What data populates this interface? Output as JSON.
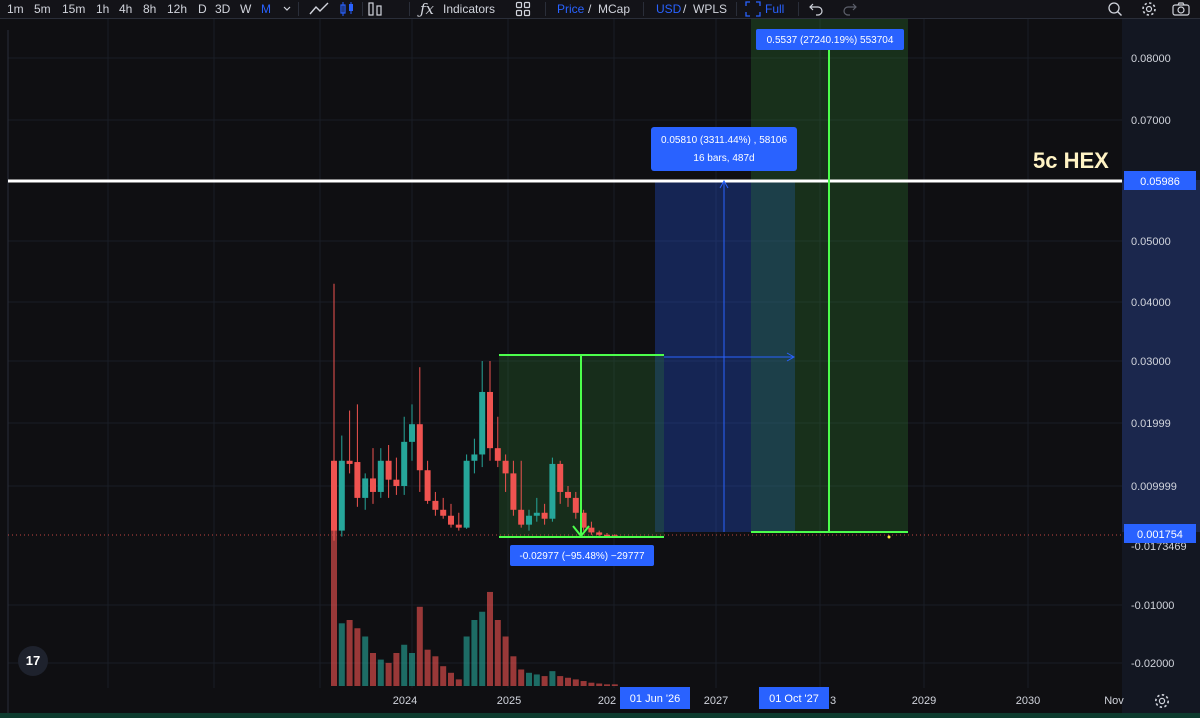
{
  "toolbar": {
    "intervals": [
      "1m",
      "5m",
      "15m",
      "1h",
      "4h",
      "8h",
      "12h",
      "D",
      "3D",
      "W",
      "M"
    ],
    "active_interval": "M",
    "indicators_label": "Indicators",
    "price_label": "Price",
    "mcap_label": "MCap",
    "currency_label": "USD",
    "pair_label": "WPLS",
    "full_label": "Full"
  },
  "colors": {
    "up": "#26a69a",
    "down": "#ef5350",
    "accent": "#2962ff",
    "measure_green": "#4cff4c",
    "hline": "#ffffff",
    "annotation": "#fff3c4"
  },
  "chart_data": {
    "type": "candlestick",
    "price_ticks": [
      "0.08000",
      "0.07000",
      "0.05000",
      "0.04000",
      "0.03000",
      "0.01999",
      "0.009999",
      "-0.01000",
      "-0.02000"
    ],
    "partial_tick": "-0.0173469",
    "time_ticks": [
      "2024",
      "2025",
      "2027",
      "2029",
      "2030",
      "Nov"
    ],
    "time_tick_partials": [
      "202",
      "3"
    ],
    "last_price_label": "0.001754",
    "hline_label": "0.05986",
    "annotation_text": "5c HEX",
    "measure_down": "-0.02977 (−95.48%) −29777",
    "measure_up_line1": "0.05810 (3311.44%) , 58106",
    "measure_up_line2": "16 bars, 487d",
    "measure_big": "0.5537 (27240.19%) 553704",
    "range_start_label": "01 Jun '26",
    "range_end_label": "01 Oct '27",
    "candles": [
      {
        "o": 0.014,
        "h": 0.043,
        "l": 0.0008,
        "c": 0.0025
      },
      {
        "o": 0.0025,
        "h": 0.018,
        "l": 0.0015,
        "c": 0.014
      },
      {
        "o": 0.014,
        "h": 0.022,
        "l": 0.012,
        "c": 0.0135
      },
      {
        "o": 0.0138,
        "h": 0.023,
        "l": 0.0065,
        "c": 0.008
      },
      {
        "o": 0.008,
        "h": 0.012,
        "l": 0.006,
        "c": 0.0112
      },
      {
        "o": 0.0112,
        "h": 0.016,
        "l": 0.007,
        "c": 0.009
      },
      {
        "o": 0.009,
        "h": 0.016,
        "l": 0.008,
        "c": 0.014
      },
      {
        "o": 0.014,
        "h": 0.0165,
        "l": 0.008,
        "c": 0.011
      },
      {
        "o": 0.011,
        "h": 0.0145,
        "l": 0.0085,
        "c": 0.01
      },
      {
        "o": 0.01,
        "h": 0.021,
        "l": 0.0085,
        "c": 0.017
      },
      {
        "o": 0.017,
        "h": 0.023,
        "l": 0.014,
        "c": 0.0198
      },
      {
        "o": 0.0198,
        "h": 0.029,
        "l": 0.009,
        "c": 0.0125
      },
      {
        "o": 0.0125,
        "h": 0.014,
        "l": 0.007,
        "c": 0.0075
      },
      {
        "o": 0.0075,
        "h": 0.009,
        "l": 0.005,
        "c": 0.006
      },
      {
        "o": 0.006,
        "h": 0.008,
        "l": 0.0045,
        "c": 0.005
      },
      {
        "o": 0.005,
        "h": 0.007,
        "l": 0.003,
        "c": 0.0035
      },
      {
        "o": 0.0035,
        "h": 0.0055,
        "l": 0.0025,
        "c": 0.003
      },
      {
        "o": 0.003,
        "h": 0.015,
        "l": 0.0028,
        "c": 0.014
      },
      {
        "o": 0.014,
        "h": 0.0175,
        "l": 0.012,
        "c": 0.015
      },
      {
        "o": 0.015,
        "h": 0.03,
        "l": 0.013,
        "c": 0.025
      },
      {
        "o": 0.025,
        "h": 0.03,
        "l": 0.014,
        "c": 0.016
      },
      {
        "o": 0.016,
        "h": 0.021,
        "l": 0.013,
        "c": 0.014
      },
      {
        "o": 0.014,
        "h": 0.015,
        "l": 0.009,
        "c": 0.012
      },
      {
        "o": 0.012,
        "h": 0.014,
        "l": 0.005,
        "c": 0.006
      },
      {
        "o": 0.006,
        "h": 0.014,
        "l": 0.003,
        "c": 0.0035
      },
      {
        "o": 0.0035,
        "h": 0.006,
        "l": 0.0025,
        "c": 0.005
      },
      {
        "o": 0.005,
        "h": 0.008,
        "l": 0.004,
        "c": 0.0055
      },
      {
        "o": 0.0055,
        "h": 0.007,
        "l": 0.0035,
        "c": 0.0045
      },
      {
        "o": 0.0045,
        "h": 0.0145,
        "l": 0.004,
        "c": 0.0135
      },
      {
        "o": 0.0135,
        "h": 0.014,
        "l": 0.007,
        "c": 0.009
      },
      {
        "o": 0.009,
        "h": 0.01,
        "l": 0.0065,
        "c": 0.008
      },
      {
        "o": 0.008,
        "h": 0.009,
        "l": 0.0045,
        "c": 0.0055
      },
      {
        "o": 0.0055,
        "h": 0.006,
        "l": 0.0025,
        "c": 0.003
      },
      {
        "o": 0.003,
        "h": 0.004,
        "l": 0.0018,
        "c": 0.0022
      },
      {
        "o": 0.0022,
        "h": 0.0025,
        "l": 0.0015,
        "c": 0.0018
      },
      {
        "o": 0.0018,
        "h": 0.0021,
        "l": 0.0015,
        "c": 0.0017
      },
      {
        "o": 0.0017,
        "h": 0.0019,
        "l": 0.0015,
        "c": 0.0016
      }
    ],
    "volumes": [
      1.0,
      0.38,
      0.4,
      0.35,
      0.3,
      0.2,
      0.16,
      0.14,
      0.2,
      0.25,
      0.2,
      0.48,
      0.22,
      0.18,
      0.12,
      0.08,
      0.04,
      0.3,
      0.4,
      0.45,
      0.57,
      0.4,
      0.3,
      0.18,
      0.1,
      0.08,
      0.07,
      0.06,
      0.09,
      0.06,
      0.05,
      0.04,
      0.03,
      0.02,
      0.015,
      0.01,
      0.01
    ]
  }
}
